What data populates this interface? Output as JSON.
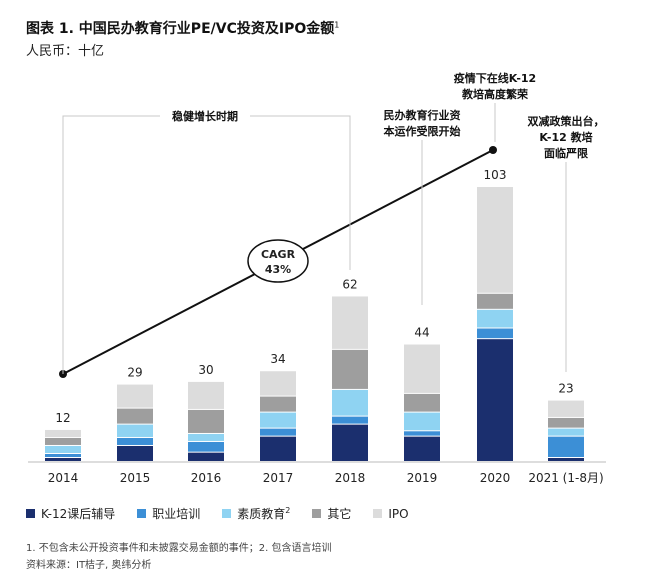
{
  "title": "图表 1. 中国民办教育行业PE/VC投资及IPO金额",
  "title_sup": "1",
  "subtitle": "人民币：十亿",
  "colors": {
    "k12": "#1b2f6e",
    "vocational": "#3c8fd6",
    "quality": "#8fd3f2",
    "other": "#9e9e9e",
    "ipo": "#dcdcdc",
    "line": "#111111"
  },
  "legend": [
    {
      "key": "k12",
      "label": "K-12课后辅导",
      "sup": ""
    },
    {
      "key": "vocational",
      "label": "职业培训",
      "sup": ""
    },
    {
      "key": "quality",
      "label": "素质教育",
      "sup": "2"
    },
    {
      "key": "other",
      "label": "其它",
      "sup": ""
    },
    {
      "key": "ipo",
      "label": "IPO",
      "sup": ""
    }
  ],
  "chart_data": {
    "type": "bar",
    "stacked": true,
    "categories": [
      "2014",
      "2015",
      "2016",
      "2017",
      "2018",
      "2019",
      "2020",
      "2021 (1-8月)"
    ],
    "totals": [
      12,
      29,
      30,
      34,
      62,
      44,
      103,
      23
    ],
    "series": [
      {
        "name": "K-12课后辅导",
        "key": "k12",
        "values": [
          1.5,
          6,
          3.5,
          9.5,
          14,
          9.5,
          46,
          1.5
        ]
      },
      {
        "name": "职业培训",
        "key": "vocational",
        "values": [
          1.5,
          3,
          4,
          3,
          3,
          2,
          4,
          8
        ]
      },
      {
        "name": "素质教育",
        "key": "quality",
        "values": [
          3,
          5,
          3,
          6,
          10,
          7,
          7,
          3
        ]
      },
      {
        "name": "其它",
        "key": "other",
        "values": [
          3,
          6,
          9,
          6,
          15,
          7,
          6,
          4
        ]
      },
      {
        "name": "IPO",
        "key": "ipo",
        "values": [
          3,
          9,
          10.5,
          9.5,
          20,
          18.5,
          40,
          6.5
        ]
      }
    ],
    "ylim": [
      0,
      110
    ],
    "cagr_line": {
      "from": "2014",
      "to": "2020",
      "label_line1": "CAGR",
      "label_line2": "43%"
    },
    "annotations": [
      {
        "id": "steady",
        "text": [
          "稳健增长时期"
        ]
      },
      {
        "id": "capital",
        "text": [
          "民办教育行业资",
          "本运作受限开始"
        ]
      },
      {
        "id": "pandemic",
        "text": [
          "疫情下在线K-12",
          "教培高度繁荣"
        ]
      },
      {
        "id": "double",
        "text": [
          "双减政策出台，",
          "K-12 教培",
          "面临严限"
        ]
      }
    ]
  },
  "footnote": "1. 不包含未公开投资事件和未披露交易金额的事件；2. 包含语言培训",
  "source": "资料来源：IT桔子, 奥纬分析"
}
